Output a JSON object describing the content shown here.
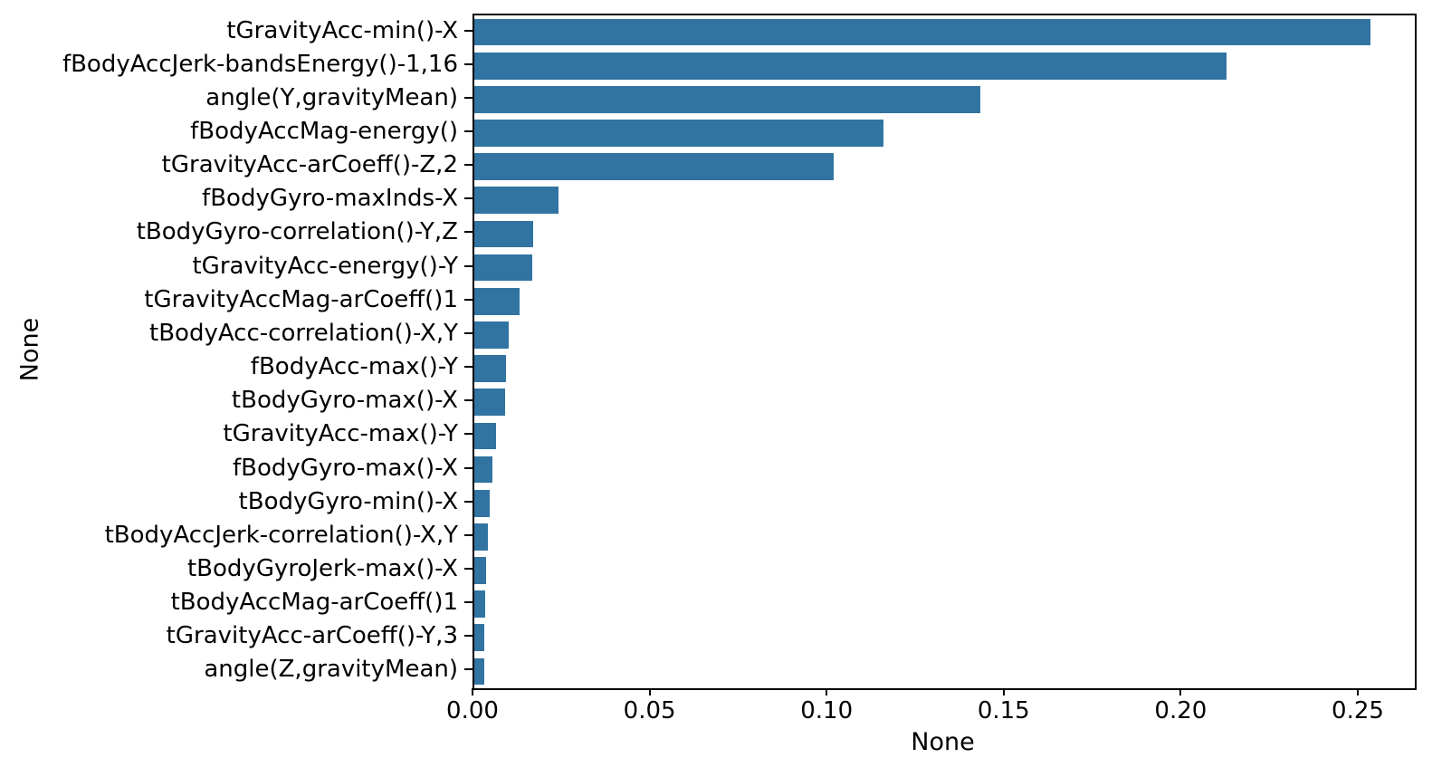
{
  "figure": {
    "background": "#ffffff",
    "spine_color": "#000000"
  },
  "chart_data": {
    "type": "bar",
    "orientation": "horizontal",
    "title": "",
    "xlabel": "None",
    "ylabel": "None",
    "legend_position": "none",
    "grid": false,
    "categories": [
      "tGravityAcc-min()-X",
      "fBodyAccJerk-bandsEnergy()-1,16",
      "angle(Y,gravityMean)",
      "fBodyAccMag-energy()",
      "tGravityAcc-arCoeff()-Z,2",
      "fBodyGyro-maxInds-X",
      "tBodyGyro-correlation()-Y,Z",
      "tGravityAcc-energy()-Y",
      "tGravityAccMag-arCoeff()1",
      "tBodyAcc-correlation()-X,Y",
      "fBodyAcc-max()-Y",
      "tBodyGyro-max()-X",
      "tGravityAcc-max()-Y",
      "fBodyGyro-max()-X",
      "tBodyGyro-min()-X",
      "tBodyAccJerk-correlation()-X,Y",
      "tBodyGyroJerk-max()-X",
      "tBodyAccMag-arCoeff()1",
      "tGravityAcc-arCoeff()-Y,3",
      "angle(Z,gravityMean)"
    ],
    "values": [
      0.2531,
      0.2125,
      0.1429,
      0.1156,
      0.1015,
      0.0237,
      0.0165,
      0.0163,
      0.0128,
      0.0097,
      0.0089,
      0.0086,
      0.0061,
      0.0052,
      0.0044,
      0.0038,
      0.0034,
      0.0031,
      0.0029,
      0.0028
    ],
    "xlim": [
      0,
      0.2656
    ],
    "xticks": [
      0,
      0.05,
      0.1,
      0.15,
      0.2,
      0.25
    ],
    "xtick_labels": [
      "0.00",
      "0.05",
      "0.10",
      "0.15",
      "0.20",
      "0.25"
    ],
    "bar_color": "#3274a1"
  }
}
